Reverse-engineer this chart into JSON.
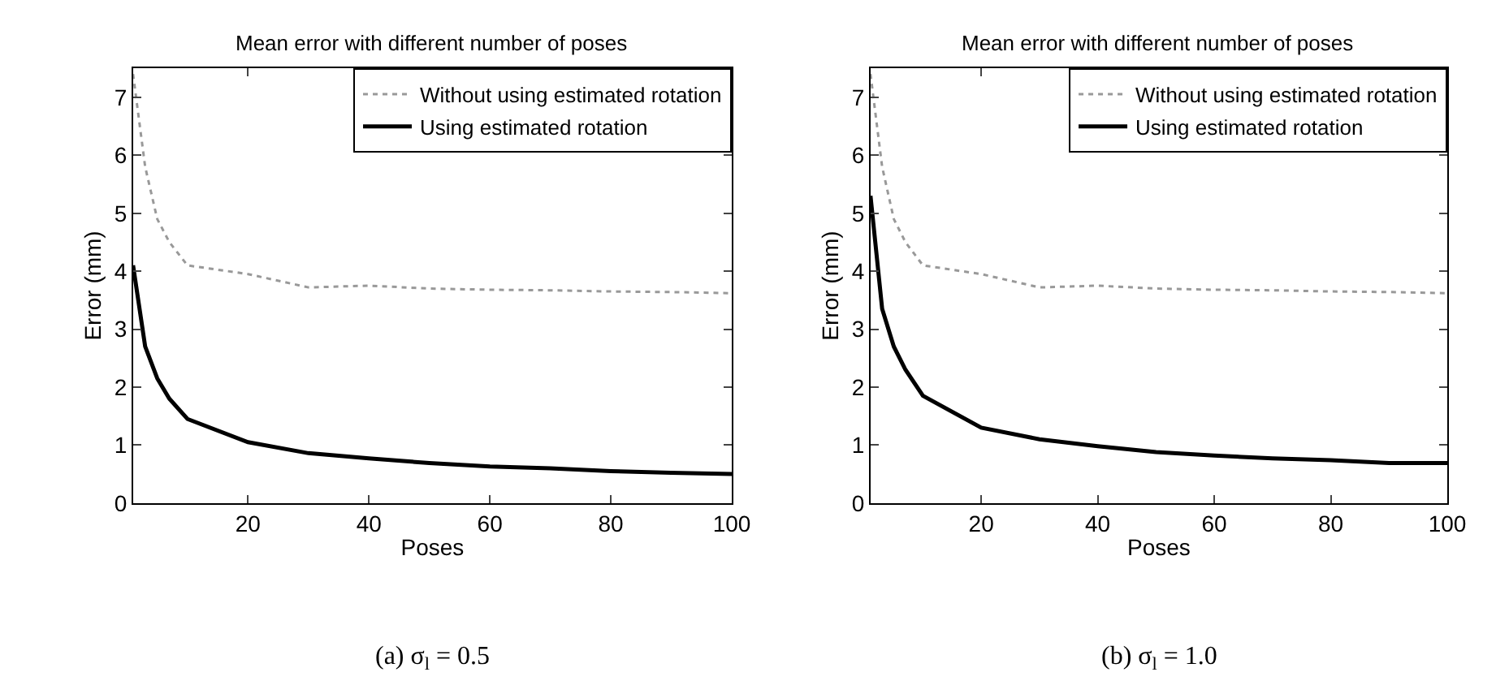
{
  "chart_data": [
    {
      "type": "line",
      "title": "Mean error with different number of poses",
      "xlabel": "Poses",
      "ylabel": "Error (mm)",
      "x": [
        1,
        3,
        5,
        7,
        10,
        20,
        30,
        40,
        50,
        60,
        70,
        80,
        90,
        100
      ],
      "xlim": [
        1,
        100
      ],
      "ylim": [
        0,
        7.5
      ],
      "xticks": [
        20,
        40,
        60,
        80,
        100
      ],
      "yticks": [
        0,
        1,
        2,
        3,
        4,
        5,
        6,
        7
      ],
      "legend": "top right",
      "annotations": [
        "(a) σ$_{l}$ = 0.5"
      ],
      "series": [
        {
          "name": "Without using estimated rotation",
          "color": "#999999",
          "line_style": "dotted",
          "values": [
            7.4,
            5.8,
            4.9,
            4.5,
            4.1,
            3.95,
            3.72,
            3.75,
            3.7,
            3.68,
            3.67,
            3.65,
            3.64,
            3.62
          ]
        },
        {
          "name": "Using estimated rotation",
          "color": "#000000",
          "line_style": "solid",
          "values": [
            4.1,
            2.7,
            2.15,
            1.8,
            1.45,
            1.05,
            0.86,
            0.77,
            0.69,
            0.63,
            0.6,
            0.55,
            0.52,
            0.5
          ]
        }
      ]
    },
    {
      "type": "line",
      "title": "Mean error with different number of poses",
      "xlabel": "Poses",
      "ylabel": "Error (mm)",
      "x": [
        1,
        3,
        5,
        7,
        10,
        20,
        30,
        40,
        50,
        60,
        70,
        80,
        90,
        100
      ],
      "xlim": [
        1,
        100
      ],
      "ylim": [
        0,
        7.5
      ],
      "xticks": [
        20,
        40,
        60,
        80,
        100
      ],
      "yticks": [
        0,
        1,
        2,
        3,
        4,
        5,
        6,
        7
      ],
      "legend": "top right",
      "annotations": [
        "(b) σ$_{l}$ = 1.0"
      ],
      "series": [
        {
          "name": "Without using estimated rotation",
          "color": "#999999",
          "line_style": "dotted",
          "values": [
            7.4,
            5.8,
            4.9,
            4.5,
            4.1,
            3.95,
            3.72,
            3.75,
            3.7,
            3.68,
            3.67,
            3.65,
            3.64,
            3.62
          ]
        },
        {
          "name": "Using estimated rotation",
          "color": "#000000",
          "line_style": "solid",
          "values": [
            5.3,
            3.35,
            2.7,
            2.3,
            1.85,
            1.3,
            1.1,
            0.98,
            0.88,
            0.82,
            0.77,
            0.74,
            0.69,
            0.69
          ]
        }
      ]
    }
  ]
}
